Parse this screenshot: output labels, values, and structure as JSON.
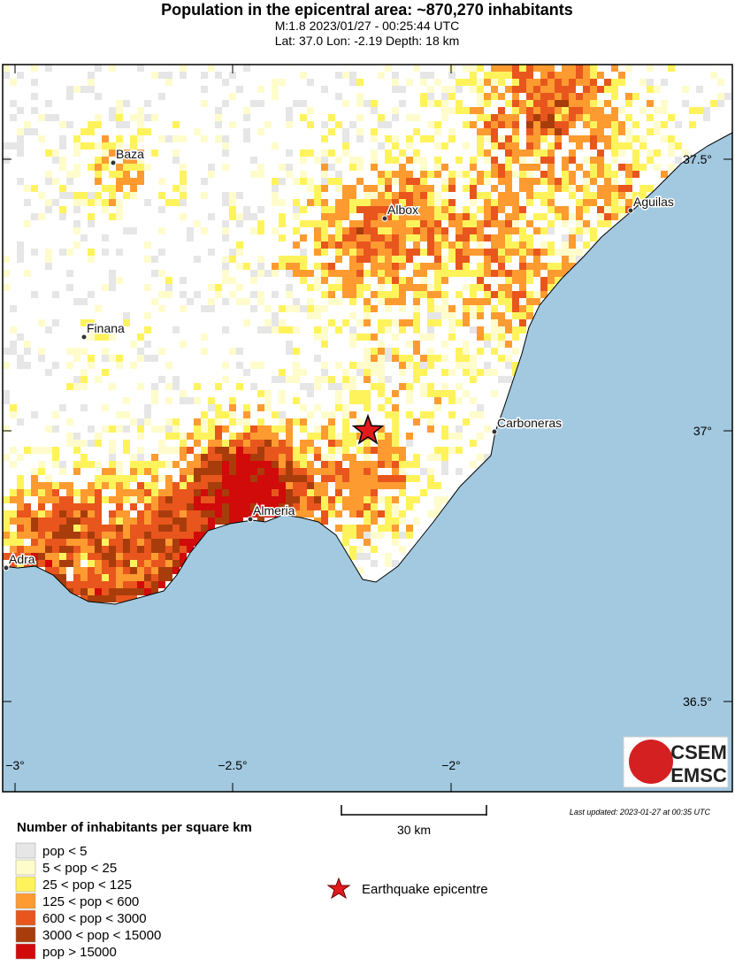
{
  "header": {
    "title": "Population in the epicentral area: ~870,270 inhabitants",
    "line1": "M:1.8 2023/01/27 - 00:25:44 UTC",
    "line2": "Lat: 37.0 Lon: -2.19 Depth: 18 km"
  },
  "map": {
    "cities": [
      "Baza",
      "Albox",
      "Aguilas",
      "Finana",
      "Carboneras",
      "Almeria",
      "Adra"
    ],
    "lat_labels": [
      "37.5°",
      "37°",
      "36.5°"
    ],
    "lon_labels": [
      "−3°",
      "−2.5°",
      "−2°"
    ],
    "scale_label": "30 km",
    "updated": "Last updated: 2023-01-27 at 00:35 UTC",
    "logo": [
      "CSEM",
      "EMSC"
    ]
  },
  "legend": {
    "title": "Number of inhabitants per square km",
    "items": [
      "pop < 5",
      "5 < pop < 25",
      "25 < pop < 125",
      "125 < pop < 600",
      "600 < pop < 3000",
      "3000 < pop < 15000",
      "pop > 15000"
    ],
    "epicentre": "Earthquake epicentre"
  }
}
